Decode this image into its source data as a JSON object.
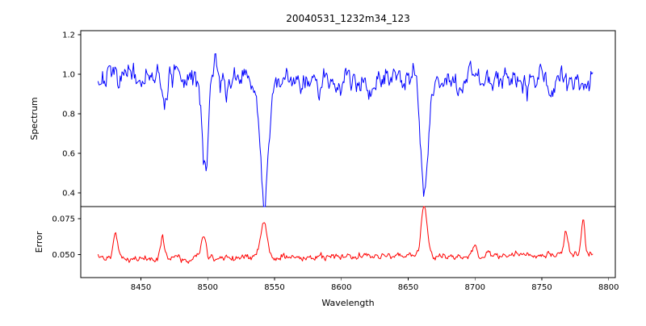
{
  "title": "20040531_1232m34_123",
  "chart_data": {
    "type": "line",
    "title": "20040531_1232m34_123",
    "xlabel": "Wavelength",
    "grid": false,
    "legend": "none",
    "xlim": [
      8405,
      8805
    ],
    "xticks": [
      8450,
      8500,
      8550,
      8600,
      8650,
      8700,
      8750,
      8800
    ],
    "xtick_labels": [
      "8450",
      "8500",
      "8550",
      "8600",
      "8650",
      "8700",
      "8750",
      "8800"
    ],
    "x_data_range": [
      8418,
      8788
    ],
    "n_points": 560,
    "seed": 7,
    "panels": [
      {
        "name": "spectrum",
        "ylabel": "Spectrum",
        "ylim": [
          0.33,
          1.22
        ],
        "yticks": [
          0.4,
          0.6,
          0.8,
          1.0,
          1.2
        ],
        "ytick_labels": [
          "0.4",
          "0.6",
          "0.8",
          "1.0",
          "1.2"
        ],
        "color": "#0000ff",
        "series": {
          "baseline": 0.975,
          "slope": 0,
          "noise_sigma": 0.032,
          "absorption_lines": [
            {
              "center": 8467.5,
              "depth": 0.12,
              "width": 1.4
            },
            {
              "center": 8498.0,
              "depth": 0.45,
              "width": 2.2
            },
            {
              "center": 8514.0,
              "depth": 0.12,
              "width": 1.4
            },
            {
              "center": 8542.1,
              "depth": 0.62,
              "width": 3.0
            },
            {
              "center": 8583.0,
              "depth": 0.08,
              "width": 1.2
            },
            {
              "center": 8621.0,
              "depth": 0.07,
              "width": 1.1
            },
            {
              "center": 8662.1,
              "depth": 0.57,
              "width": 2.6
            },
            {
              "center": 8688.0,
              "depth": 0.08,
              "width": 1.2
            },
            {
              "center": 8713.0,
              "depth": 0.07,
              "width": 1.1
            },
            {
              "center": 8757.0,
              "depth": 0.08,
              "width": 1.1
            }
          ],
          "peaks": [
            {
              "center": 8506.0,
              "height": 0.14,
              "width": 1.0
            },
            {
              "center": 8697.0,
              "height": 0.13,
              "width": 1.0
            }
          ]
        }
      },
      {
        "name": "error",
        "ylabel": "Error",
        "ylim": [
          0.0342,
          0.0833
        ],
        "yticks": [
          0.05,
          0.075
        ],
        "ytick_labels": [
          "0.050",
          "0.075"
        ],
        "color": "#ff0000",
        "series": {
          "baseline": 0.0472,
          "slope": 8.5e-06,
          "noise_sigma": 0.0013,
          "absorption_lines": [],
          "peaks": [
            {
              "center": 8431,
              "height": 0.018,
              "width": 1.6
            },
            {
              "center": 8466,
              "height": 0.014,
              "width": 1.6
            },
            {
              "center": 8497,
              "height": 0.014,
              "width": 2.0
            },
            {
              "center": 8542,
              "height": 0.026,
              "width": 2.4
            },
            {
              "center": 8662,
              "height": 0.034,
              "width": 2.2
            },
            {
              "center": 8700,
              "height": 0.007,
              "width": 1.4
            },
            {
              "center": 8768,
              "height": 0.015,
              "width": 1.4
            },
            {
              "center": 8781,
              "height": 0.024,
              "width": 1.3
            }
          ]
        }
      }
    ]
  }
}
